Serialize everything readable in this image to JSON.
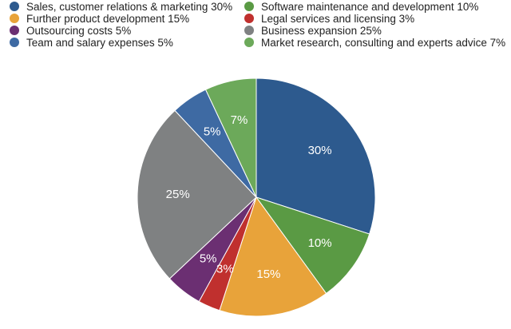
{
  "chart_data": {
    "type": "pie",
    "title": "",
    "legend_position": "top",
    "slices": [
      {
        "name": "Sales, customer relations & marketing 30%",
        "value": 30,
        "label": "30%",
        "color": "#2d5a8e"
      },
      {
        "name": "Software maintenance and development 10%",
        "value": 10,
        "label": "10%",
        "color": "#5a9a44"
      },
      {
        "name": "Further product development 15%",
        "value": 15,
        "label": "15%",
        "color": "#e8a33a"
      },
      {
        "name": "Legal services and licensing 3%",
        "value": 3,
        "label": "3%",
        "color": "#c0302e"
      },
      {
        "name": "Outsourcing costs 5%",
        "value": 5,
        "label": "5%",
        "color": "#6b2f72"
      },
      {
        "name": "Business expansion 25%",
        "value": 25,
        "label": "25%",
        "color": "#7f8182"
      },
      {
        "name": "Team and salary expenses 5%",
        "value": 5,
        "label": "5%",
        "color": "#3e6aa3"
      },
      {
        "name": "Market research, consulting and experts advice 7%",
        "value": 7,
        "label": "7%",
        "color": "#6ca95a"
      }
    ]
  }
}
